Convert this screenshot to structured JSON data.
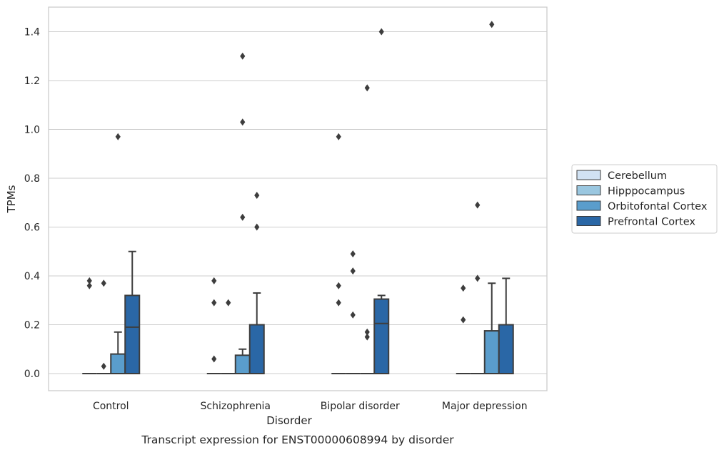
{
  "chart_data": {
    "type": "boxplot",
    "title": "",
    "caption": "Transcript expression for ENST00000608994 by disorder",
    "xlabel": "Disorder",
    "ylabel": "TPMs",
    "ylim": [
      -0.07,
      1.5
    ],
    "yticks": [
      0.0,
      0.2,
      0.4,
      0.6,
      0.8,
      1.0,
      1.2,
      1.4
    ],
    "ytick_labels": [
      "0.0",
      "0.2",
      "0.4",
      "0.6",
      "0.8",
      "1.0",
      "1.2",
      "1.4"
    ],
    "grid": "horizontal",
    "legend_position": "right",
    "categories": [
      "Control",
      "Schizophrenia",
      "Bipolar disorder",
      "Major depression"
    ],
    "series": [
      {
        "name": "Cerebellum",
        "color": "#d1e2f3",
        "boxes": [
          {
            "q1": 0,
            "median": 0,
            "q3": 0,
            "whisker_low": 0,
            "whisker_high": 0,
            "outliers": [
              0.36,
              0.38
            ]
          },
          {
            "q1": 0,
            "median": 0,
            "q3": 0,
            "whisker_low": 0,
            "whisker_high": 0,
            "outliers": [
              0.06,
              0.29,
              0.38
            ]
          },
          {
            "q1": 0,
            "median": 0,
            "q3": 0,
            "whisker_low": 0,
            "whisker_high": 0,
            "outliers": [
              0.29,
              0.36,
              0.97
            ]
          },
          {
            "q1": 0,
            "median": 0,
            "q3": 0,
            "whisker_low": 0,
            "whisker_high": 0,
            "outliers": [
              0.22,
              0.35
            ]
          }
        ]
      },
      {
        "name": "Hipppocampus",
        "color": "#9ac7e0",
        "boxes": [
          {
            "q1": 0,
            "median": 0,
            "q3": 0,
            "whisker_low": 0,
            "whisker_high": 0,
            "outliers": [
              0.03,
              0.37
            ]
          },
          {
            "q1": 0,
            "median": 0,
            "q3": 0,
            "whisker_low": 0,
            "whisker_high": 0,
            "outliers": [
              0.29
            ]
          },
          {
            "q1": 0,
            "median": 0,
            "q3": 0,
            "whisker_low": 0,
            "whisker_high": 0,
            "outliers": [
              0.24,
              0.42,
              0.49
            ]
          },
          {
            "q1": 0,
            "median": 0,
            "q3": 0,
            "whisker_low": 0,
            "whisker_high": 0,
            "outliers": [
              0.39,
              0.69
            ]
          }
        ]
      },
      {
        "name": "Orbitofontal Cortex",
        "color": "#5a9dcc",
        "boxes": [
          {
            "q1": 0,
            "median": 0,
            "q3": 0.08,
            "whisker_low": 0,
            "whisker_high": 0.17,
            "outliers": [
              0.97
            ]
          },
          {
            "q1": 0,
            "median": 0,
            "q3": 0.075,
            "whisker_low": 0,
            "whisker_high": 0.1,
            "outliers": [
              0.64,
              1.03,
              1.3
            ]
          },
          {
            "q1": 0,
            "median": 0,
            "q3": 0,
            "whisker_low": 0,
            "whisker_high": 0,
            "outliers": [
              0.15,
              0.17,
              1.17
            ]
          },
          {
            "q1": 0,
            "median": 0,
            "q3": 0.175,
            "whisker_low": 0,
            "whisker_high": 0.37,
            "outliers": [
              1.43
            ]
          }
        ]
      },
      {
        "name": "Prefrontal Cortex",
        "color": "#2a67a6",
        "boxes": [
          {
            "q1": 0,
            "median": 0.19,
            "q3": 0.32,
            "whisker_low": 0,
            "whisker_high": 0.5,
            "outliers": []
          },
          {
            "q1": 0,
            "median": 0,
            "q3": 0.2,
            "whisker_low": 0,
            "whisker_high": 0.33,
            "outliers": [
              0.6,
              0.73
            ]
          },
          {
            "q1": 0,
            "median": 0.205,
            "q3": 0.305,
            "whisker_low": 0,
            "whisker_high": 0.32,
            "outliers": [
              1.4
            ]
          },
          {
            "q1": 0,
            "median": 0,
            "q3": 0.2,
            "whisker_low": 0,
            "whisker_high": 0.39,
            "outliers": []
          }
        ]
      }
    ]
  }
}
